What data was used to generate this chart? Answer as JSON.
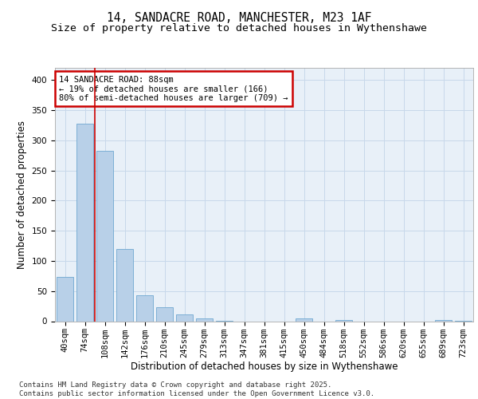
{
  "title_line1": "14, SANDACRE ROAD, MANCHESTER, M23 1AF",
  "title_line2": "Size of property relative to detached houses in Wythenshawe",
  "xlabel": "Distribution of detached houses by size in Wythenshawe",
  "ylabel": "Number of detached properties",
  "categories": [
    "40sqm",
    "74sqm",
    "108sqm",
    "142sqm",
    "176sqm",
    "210sqm",
    "245sqm",
    "279sqm",
    "313sqm",
    "347sqm",
    "381sqm",
    "415sqm",
    "450sqm",
    "484sqm",
    "518sqm",
    "552sqm",
    "586sqm",
    "620sqm",
    "655sqm",
    "689sqm",
    "723sqm"
  ],
  "values": [
    74,
    328,
    283,
    120,
    43,
    23,
    11,
    4,
    1,
    0,
    0,
    0,
    5,
    0,
    2,
    0,
    0,
    0,
    0,
    2,
    1
  ],
  "bar_color": "#b8d0e8",
  "bar_edge_color": "#6fa8d0",
  "vline_x": 1.5,
  "vline_color": "#cc0000",
  "annotation_text": "14 SANDACRE ROAD: 88sqm\n← 19% of detached houses are smaller (166)\n80% of semi-detached houses are larger (709) →",
  "annotation_box_color": "#cc0000",
  "annotation_facecolor": "white",
  "ylim": [
    0,
    420
  ],
  "yticks": [
    0,
    50,
    100,
    150,
    200,
    250,
    300,
    350,
    400
  ],
  "grid_color": "#c8d8ea",
  "background_color": "#e8f0f8",
  "footer_text": "Contains HM Land Registry data © Crown copyright and database right 2025.\nContains public sector information licensed under the Open Government Licence v3.0.",
  "title_fontsize": 10.5,
  "subtitle_fontsize": 9.5,
  "axis_label_fontsize": 8.5,
  "tick_fontsize": 7.5,
  "annotation_fontsize": 7.5,
  "footer_fontsize": 6.5
}
